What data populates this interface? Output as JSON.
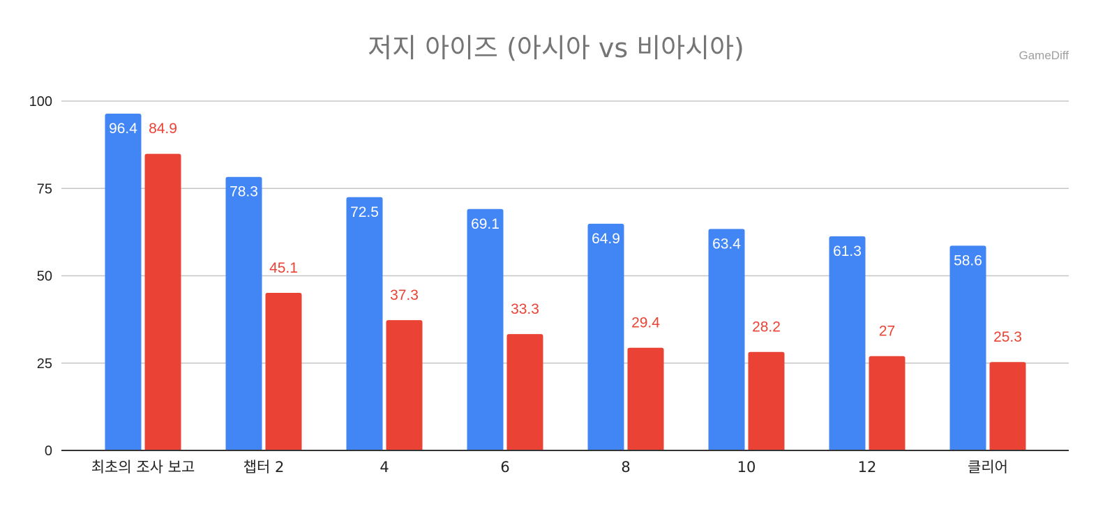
{
  "chart_data": {
    "type": "bar",
    "title": "저지 아이즈 (아시아 vs 비아시아)",
    "watermark": "GameDiff",
    "categories": [
      "최초의 조사 보고",
      "챕터 2",
      "4",
      "6",
      "8",
      "10",
      "12",
      "클리어"
    ],
    "series": [
      {
        "values": [
          96.4,
          78.3,
          72.5,
          69.1,
          64.9,
          63.4,
          61.3,
          58.6
        ],
        "color": "#4285F4",
        "label_color": "#ffffff"
      },
      {
        "values": [
          84.9,
          45.1,
          37.3,
          33.3,
          29.4,
          28.2,
          27,
          25.3
        ],
        "color": "#EA4335",
        "label_color": "#EA4335"
      }
    ],
    "xlabel": "",
    "ylabel": "",
    "ylim": [
      0,
      100
    ],
    "yticks": [
      "0",
      "25",
      "50",
      "75",
      "100"
    ],
    "grid": true,
    "legend": "none"
  }
}
